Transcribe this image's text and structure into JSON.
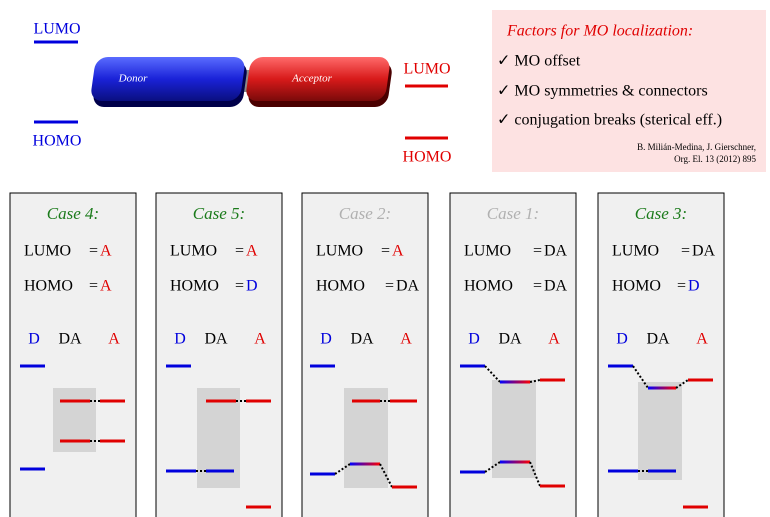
{
  "header": {
    "donor_lumo": "LUMO",
    "donor_homo": "HOMO",
    "donor": "Donor",
    "acceptor": "Acceptor",
    "acceptor_lumo": "LUMO",
    "acceptor_homo": "HOMO"
  },
  "factors": {
    "title": "Factors for MO localization:",
    "items": [
      "✓ MO offset",
      "✓ MO symmetries & connectors",
      "✓ conjugation breaks (sterical eff.)"
    ],
    "citation": [
      "B. Milián-Medina, J. Gierschner,",
      "Org. El. 13 (2012) 895"
    ]
  },
  "cases": [
    {
      "title": "Case 4:",
      "title_color": "#1a7a1a",
      "lumo": {
        "label": "LUMO",
        "eq": "=",
        "value": "A",
        "color": "#e00000"
      },
      "homo": {
        "label": "HOMO",
        "eq": "=",
        "value": "A",
        "color": "#e00000"
      },
      "columns": [
        "D",
        "DA",
        "A"
      ]
    },
    {
      "title": "Case 5:",
      "title_color": "#1a7a1a",
      "lumo": {
        "label": "LUMO",
        "eq": "=",
        "value": "A",
        "color": "#e00000"
      },
      "homo": {
        "label": "HOMO",
        "eq": "=",
        "value": "D",
        "color": "#0000dd"
      },
      "columns": [
        "D",
        "DA",
        "A"
      ]
    },
    {
      "title": "Case 2:",
      "title_color": "#b0b0b0",
      "lumo": {
        "label": "LUMO",
        "eq": "=",
        "value": "A",
        "color": "#e00000"
      },
      "homo": {
        "label": "HOMO",
        "eq": "=",
        "value": "DA",
        "color": "#000000"
      },
      "columns": [
        "D",
        "DA",
        "A"
      ]
    },
    {
      "title": "Case 1:",
      "title_color": "#b0b0b0",
      "lumo": {
        "label": "LUMO",
        "eq": "=",
        "value": "DA",
        "color": "#000000"
      },
      "homo": {
        "label": "HOMO",
        "eq": "=",
        "value": "DA",
        "color": "#000000"
      },
      "columns": [
        "D",
        "DA",
        "A"
      ]
    },
    {
      "title": "Case 3:",
      "title_color": "#1a7a1a",
      "lumo": {
        "label": "LUMO",
        "eq": "=",
        "value": "DA",
        "color": "#000000"
      },
      "homo": {
        "label": "HOMO",
        "eq": "=",
        "value": "D",
        "color": "#0000dd"
      },
      "columns": [
        "D",
        "DA",
        "A"
      ]
    }
  ]
}
